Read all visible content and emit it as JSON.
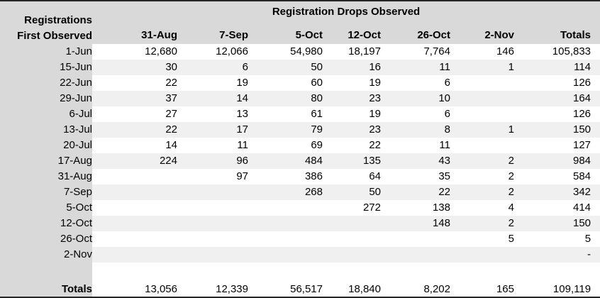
{
  "chart_data": {
    "type": "table",
    "title": "Registration Drops Observed",
    "row_axis_label_line1": "Registrations",
    "row_axis_label_line2": "First Observed",
    "columns": [
      "31-Aug",
      "7-Sep",
      "5-Oct",
      "12-Oct",
      "26-Oct",
      "2-Nov",
      "Totals"
    ],
    "rows": [
      {
        "label": "1-Jun",
        "values": [
          "12,680",
          "12,066",
          "54,980",
          "18,197",
          "7,764",
          "146",
          "105,833"
        ]
      },
      {
        "label": "15-Jun",
        "values": [
          "30",
          "6",
          "50",
          "16",
          "11",
          "1",
          "114"
        ]
      },
      {
        "label": "22-Jun",
        "values": [
          "22",
          "19",
          "60",
          "19",
          "6",
          "",
          "126"
        ]
      },
      {
        "label": "29-Jun",
        "values": [
          "37",
          "14",
          "80",
          "23",
          "10",
          "",
          "164"
        ]
      },
      {
        "label": "6-Jul",
        "values": [
          "27",
          "13",
          "61",
          "19",
          "6",
          "",
          "126"
        ]
      },
      {
        "label": "13-Jul",
        "values": [
          "22",
          "17",
          "79",
          "23",
          "8",
          "1",
          "150"
        ]
      },
      {
        "label": "20-Jul",
        "values": [
          "14",
          "11",
          "69",
          "22",
          "11",
          "",
          "127"
        ]
      },
      {
        "label": "17-Aug",
        "values": [
          "224",
          "96",
          "484",
          "135",
          "43",
          "2",
          "984"
        ]
      },
      {
        "label": "31-Aug",
        "values": [
          "",
          "97",
          "386",
          "64",
          "35",
          "2",
          "584"
        ]
      },
      {
        "label": "7-Sep",
        "values": [
          "",
          "",
          "268",
          "50",
          "22",
          "2",
          "342"
        ]
      },
      {
        "label": "5-Oct",
        "values": [
          "",
          "",
          "",
          "272",
          "138",
          "4",
          "414"
        ]
      },
      {
        "label": "12-Oct",
        "values": [
          "",
          "",
          "",
          "",
          "148",
          "2",
          "150"
        ]
      },
      {
        "label": "26-Oct",
        "values": [
          "",
          "",
          "",
          "",
          "",
          "5",
          "5"
        ]
      },
      {
        "label": "2-Nov",
        "values": [
          "",
          "",
          "",
          "",
          "",
          "",
          "-"
        ]
      }
    ],
    "totals": {
      "label": "Totals",
      "values": [
        "13,056",
        "12,339",
        "56,517",
        "18,840",
        "8,202",
        "165",
        "109,119"
      ]
    }
  },
  "colors": {
    "header_bg": "#d9d9d9",
    "stripe_bg": "#f0f0f0",
    "rule": "#262626",
    "cell_bg": "#ffffff"
  }
}
